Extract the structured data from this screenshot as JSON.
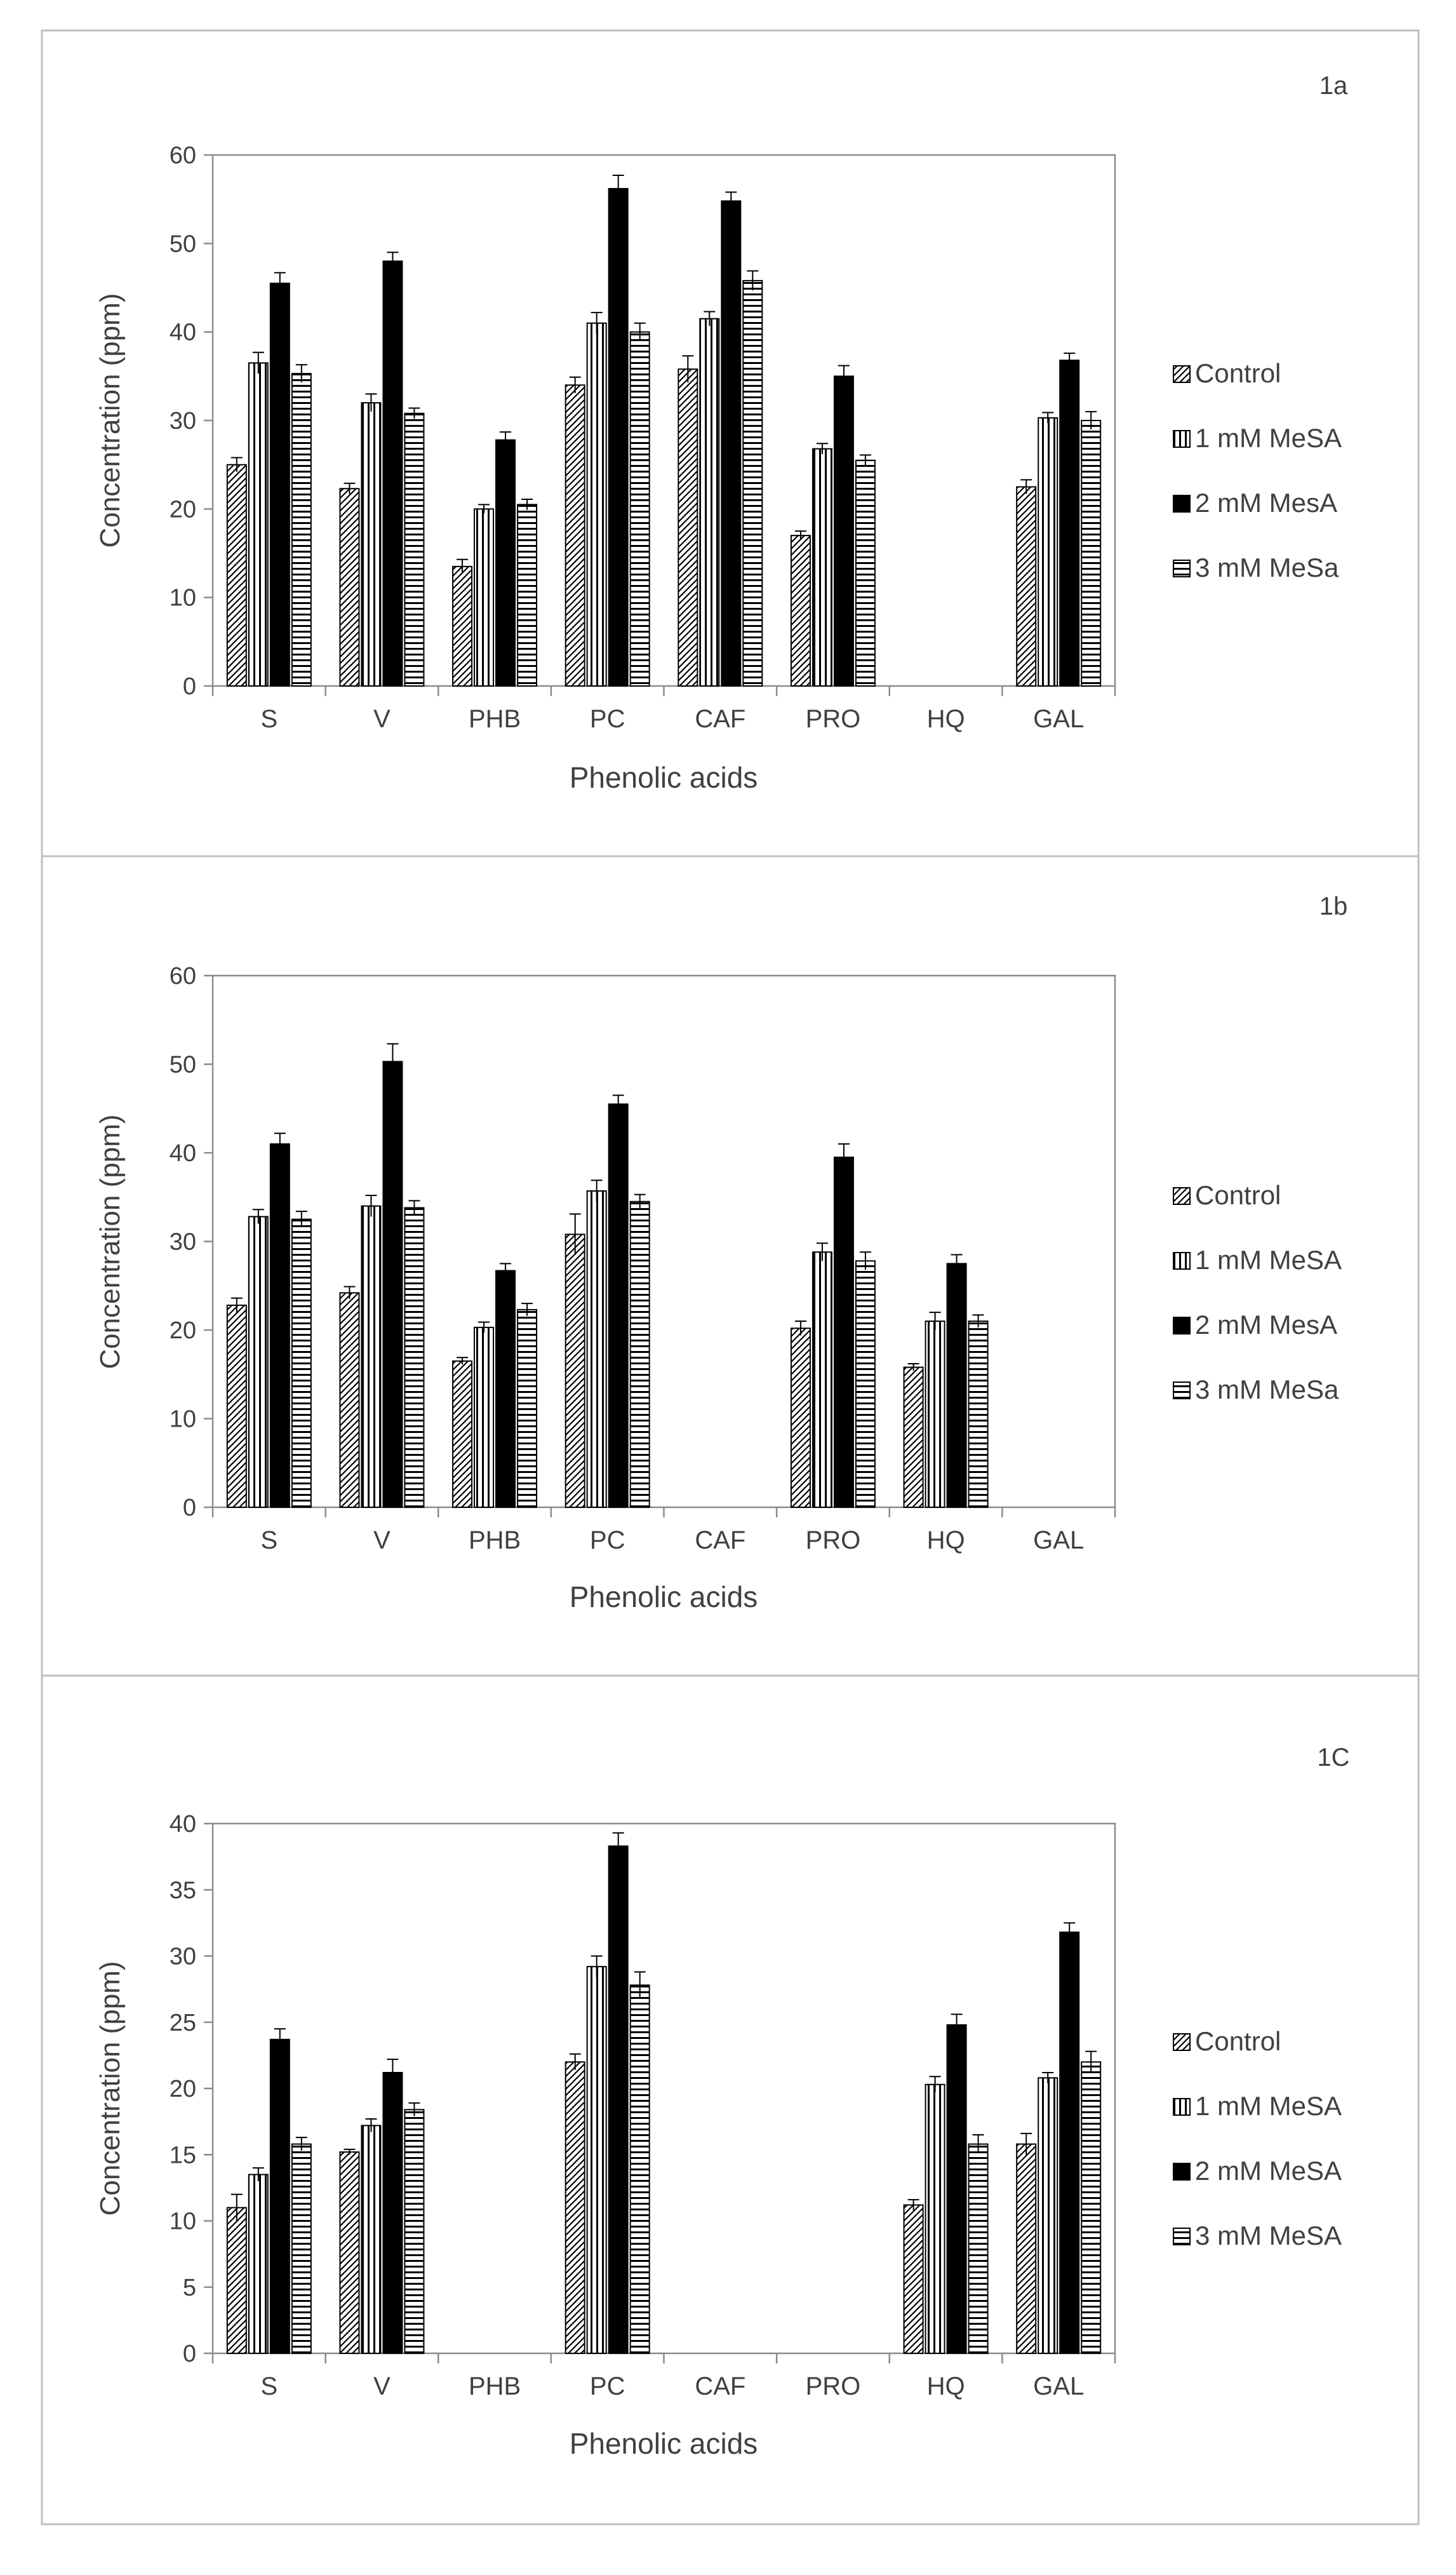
{
  "chart_data": [
    {
      "type": "bar",
      "panel_label": "1a",
      "title": "",
      "xlabel": "Phenolic acids",
      "ylabel": "Concentration (ppm)",
      "ylim": [
        0,
        60
      ],
      "yticks": [
        0,
        10,
        20,
        30,
        40,
        50,
        60
      ],
      "grid": false,
      "legend_position": "right",
      "categories": [
        "S",
        "V",
        "PHB",
        "PC",
        "CAF",
        "PRO",
        "HQ",
        "GAL"
      ],
      "series": [
        {
          "name": "Control",
          "pattern": "diagonal",
          "values": [
            25,
            22.3,
            13.5,
            34,
            35.8,
            17,
            null,
            22.5
          ],
          "errors": [
            0.8,
            0.6,
            0.8,
            0.9,
            1.5,
            0.5,
            null,
            0.8
          ]
        },
        {
          "name": "1 mM MeSA",
          "pattern": "vertical",
          "values": [
            36.5,
            32,
            20,
            41,
            41.5,
            26.8,
            null,
            30.3
          ],
          "errors": [
            1.2,
            1.0,
            0.5,
            1.2,
            0.8,
            0.6,
            null,
            0.6
          ]
        },
        {
          "name": "2 mM MesA",
          "pattern": "solid",
          "values": [
            45.5,
            48,
            27.8,
            56.2,
            54.8,
            35,
            null,
            36.8
          ],
          "errors": [
            1.2,
            1.0,
            0.9,
            1.5,
            1.0,
            1.2,
            null,
            0.8
          ]
        },
        {
          "name": "3 mM MeSa",
          "pattern": "horizontal",
          "values": [
            35.3,
            30.8,
            20.5,
            40,
            45.8,
            25.5,
            null,
            30
          ],
          "errors": [
            1.0,
            0.6,
            0.6,
            1.0,
            1.1,
            0.6,
            null,
            1.0
          ]
        }
      ]
    },
    {
      "type": "bar",
      "panel_label": "1b",
      "title": "",
      "xlabel": "Phenolic acids",
      "ylabel": "Concentration (ppm)",
      "ylim": [
        0,
        60
      ],
      "yticks": [
        0,
        10,
        20,
        30,
        40,
        50,
        60
      ],
      "grid": false,
      "legend_position": "right",
      "categories": [
        "S",
        "V",
        "PHB",
        "PC",
        "CAF",
        "PRO",
        "HQ",
        "GAL"
      ],
      "series": [
        {
          "name": "Control",
          "pattern": "diagonal",
          "values": [
            22.8,
            24.2,
            16.5,
            30.8,
            null,
            20.2,
            15.8,
            null
          ],
          "errors": [
            0.8,
            0.7,
            0.4,
            2.3,
            null,
            0.8,
            0.4,
            null
          ]
        },
        {
          "name": "1 mM MeSA",
          "pattern": "vertical",
          "values": [
            32.8,
            34,
            20.3,
            35.7,
            null,
            28.8,
            21,
            null
          ],
          "errors": [
            0.8,
            1.2,
            0.6,
            1.2,
            null,
            1.0,
            1.0,
            null
          ]
        },
        {
          "name": "2 mM MesA",
          "pattern": "solid",
          "values": [
            41,
            50.3,
            26.7,
            45.5,
            null,
            39.5,
            27.5,
            null
          ],
          "errors": [
            1.2,
            2.0,
            0.8,
            1.0,
            null,
            1.5,
            1.0,
            null
          ]
        },
        {
          "name": "3 mM MeSa",
          "pattern": "horizontal",
          "values": [
            32.5,
            33.8,
            22.3,
            34.5,
            null,
            27.8,
            21,
            null
          ],
          "errors": [
            0.9,
            0.8,
            0.7,
            0.8,
            null,
            1.0,
            0.7,
            null
          ]
        }
      ]
    },
    {
      "type": "bar",
      "panel_label": "1C",
      "title": "",
      "xlabel": "Phenolic acids",
      "ylabel": "Concentration (ppm)",
      "ylim": [
        0,
        40
      ],
      "yticks": [
        0,
        5,
        10,
        15,
        20,
        25,
        30,
        35,
        40
      ],
      "grid": false,
      "legend_position": "right",
      "categories": [
        "S",
        "V",
        "PHB",
        "PC",
        "CAF",
        "PRO",
        "HQ",
        "GAL"
      ],
      "series": [
        {
          "name": "Control",
          "pattern": "diagonal",
          "values": [
            11,
            15.2,
            null,
            22,
            null,
            null,
            11.2,
            15.8
          ],
          "errors": [
            1.0,
            0.2,
            null,
            0.6,
            null,
            null,
            0.4,
            0.8
          ]
        },
        {
          "name": "1 mM MeSA",
          "pattern": "vertical",
          "values": [
            13.5,
            17.2,
            null,
            29.2,
            null,
            null,
            20.3,
            20.8
          ],
          "errors": [
            0.5,
            0.5,
            null,
            0.8,
            null,
            null,
            0.6,
            0.4
          ]
        },
        {
          "name": "2 mM MeSA",
          "pattern": "solid",
          "values": [
            23.7,
            21.2,
            null,
            38.3,
            null,
            null,
            24.8,
            31.8
          ],
          "errors": [
            0.8,
            1.0,
            null,
            1.0,
            null,
            null,
            0.8,
            0.7
          ]
        },
        {
          "name": "3 mM MeSA",
          "pattern": "horizontal",
          "values": [
            15.8,
            18.4,
            null,
            27.8,
            null,
            null,
            15.8,
            22
          ],
          "errors": [
            0.5,
            0.5,
            null,
            1.0,
            null,
            null,
            0.7,
            0.8
          ]
        }
      ]
    }
  ]
}
